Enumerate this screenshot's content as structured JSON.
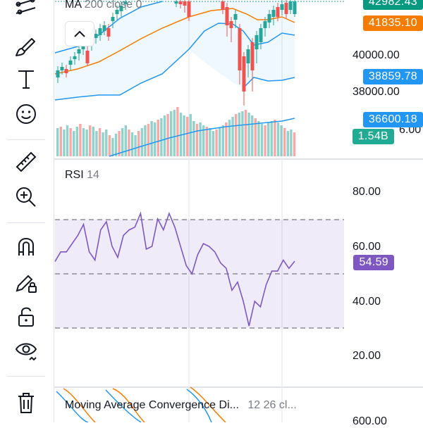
{
  "toolbar": {
    "items": [
      {
        "name": "trend-tool",
        "icon": "trendlines-icon"
      },
      {
        "name": "brush-tool",
        "icon": "brush-icon"
      },
      {
        "name": "text-tool",
        "icon": "text-icon"
      },
      {
        "name": "emoji-tool",
        "icon": "smiley-icon"
      },
      {
        "name": "ruler-tool",
        "icon": "ruler-icon"
      },
      {
        "name": "zoom-tool",
        "icon": "zoom-in-icon"
      },
      {
        "name": "magnet-tool",
        "icon": "magnet-icon"
      },
      {
        "name": "lock-drawings-tool",
        "icon": "pencil-lock-icon"
      },
      {
        "name": "lock-all-tool",
        "icon": "unlock-icon"
      },
      {
        "name": "hide-tool",
        "icon": "eye-icon"
      },
      {
        "name": "delete-tool",
        "icon": "trash-icon"
      }
    ]
  },
  "main_pane": {
    "indicator_label": "MA",
    "indicator_params": "200 close 0",
    "price_tags": [
      {
        "value": "42982.43",
        "color": "#089981"
      },
      {
        "value": "41835.10",
        "color": "#f57c00"
      },
      {
        "value": "38859.78",
        "color": "#2196f3"
      },
      {
        "value": "36600.18",
        "color": "#2196f3"
      },
      {
        "value": "1.54B",
        "color": "#22ab94"
      }
    ],
    "axis_labels": [
      "40000.00",
      "38000.00",
      "6.00"
    ]
  },
  "rsi_pane": {
    "label": "RSI",
    "param": "14",
    "value_tag": "54.59",
    "value_color": "#7e57c2",
    "axis_labels": [
      "80.00",
      "60.00",
      "40.00",
      "20.00"
    ]
  },
  "macd_pane": {
    "label": "Moving Average Convergence Di...",
    "params": "12 26 cl...",
    "axis_label": "600.00"
  },
  "colors": {
    "up": "#26a69a",
    "down": "#ef5350",
    "ma": "#f57c00",
    "band": "#2196f3",
    "rsi": "#7e57c2"
  },
  "chart_data": {
    "type": "line",
    "title": "RSI 14",
    "ylim": [
      20,
      80
    ],
    "x": [
      1,
      2,
      3,
      4,
      5,
      6,
      7,
      8,
      9,
      10,
      11,
      12,
      13,
      14,
      15,
      16,
      17,
      18,
      19,
      20,
      21,
      22,
      23,
      24,
      25,
      26,
      27,
      28,
      29,
      30,
      31,
      32,
      33,
      34,
      35,
      36,
      37,
      38,
      39,
      40,
      41,
      42,
      43
    ],
    "series": [
      {
        "values": [
          54.5,
          58,
          58,
          61,
          64,
          68,
          58,
          55,
          66,
          69,
          60,
          56,
          64,
          66,
          67,
          72,
          59,
          60,
          70,
          66,
          72,
          67,
          60,
          53,
          50,
          57,
          61,
          60,
          58,
          54,
          52,
          44,
          47,
          40,
          31,
          40,
          38,
          46,
          51,
          51,
          55,
          52,
          54.59
        ]
      }
    ]
  }
}
